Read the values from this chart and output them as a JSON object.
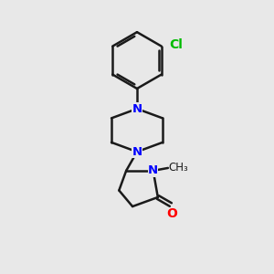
{
  "background_color": "#e8e8e8",
  "bond_color": "#1a1a1a",
  "nitrogen_color": "#0000ff",
  "oxygen_color": "#ff0000",
  "chlorine_color": "#00bb00",
  "line_width": 1.8,
  "font_size": 9.5,
  "figsize": [
    3.0,
    3.0
  ],
  "dpi": 100,
  "xlim": [
    0,
    10
  ],
  "ylim": [
    0,
    10
  ]
}
